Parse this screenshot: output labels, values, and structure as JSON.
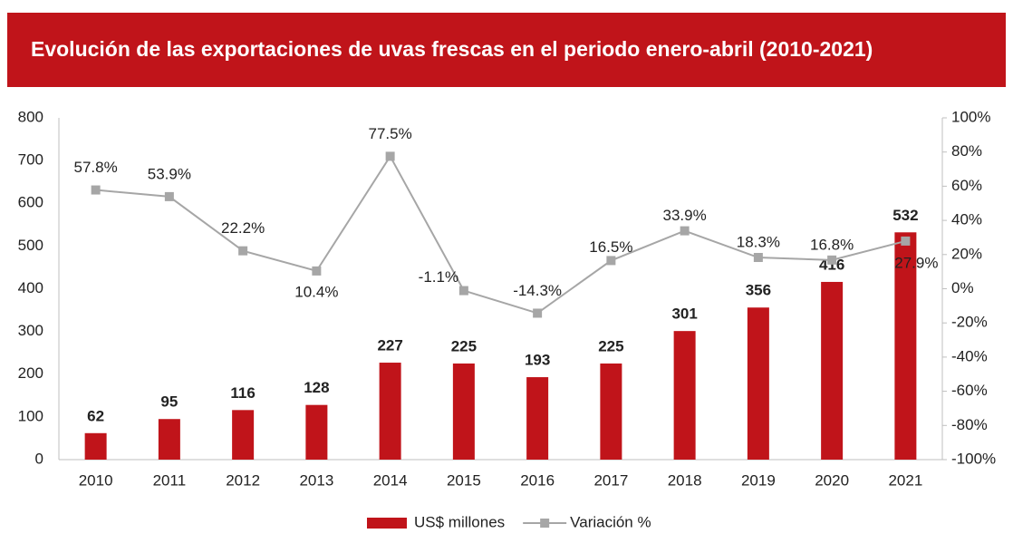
{
  "chart_data": {
    "type": "bar_line",
    "title": "Evolución de las exportaciones de uvas frescas en el periodo enero-abril (2010-2021)",
    "categories": [
      "2010",
      "2011",
      "2012",
      "2013",
      "2014",
      "2015",
      "2016",
      "2017",
      "2018",
      "2019",
      "2020",
      "2021"
    ],
    "series": [
      {
        "name": "US$ millones",
        "color": "#c0141a",
        "type": "bar",
        "values": [
          62,
          95,
          116,
          128,
          227,
          225,
          193,
          225,
          301,
          356,
          416,
          532
        ]
      },
      {
        "name": "Variación %",
        "color": "#a6a6a6",
        "type": "line",
        "axis": "y2",
        "values": [
          57.8,
          53.9,
          22.2,
          10.4,
          77.5,
          -1.1,
          -14.3,
          16.5,
          33.9,
          18.3,
          16.8,
          27.9
        ],
        "value_labels": [
          "57.8%",
          "53.9%",
          "22.2%",
          "10.4%",
          "77.5%",
          "-1.1%",
          "-14.3%",
          "16.5%",
          "33.9%",
          "18.3%",
          "16.8%",
          "27.9%"
        ]
      }
    ],
    "ylim": [
      0,
      800
    ],
    "yticks": [
      0,
      100,
      200,
      300,
      400,
      500,
      600,
      700,
      800
    ],
    "y2lim": [
      -100,
      100
    ],
    "y2ticks": [
      {
        "value": -100,
        "label": "-100%"
      },
      {
        "value": -80,
        "label": "-80%"
      },
      {
        "value": -60,
        "label": "-60%"
      },
      {
        "value": -40,
        "label": "-40%"
      },
      {
        "value": -20,
        "label": "-20%"
      },
      {
        "value": 0,
        "label": "0%"
      },
      {
        "value": 20,
        "label": "20%"
      },
      {
        "value": 40,
        "label": "40%"
      },
      {
        "value": 60,
        "label": "60%"
      },
      {
        "value": 80,
        "label": "80%"
      },
      {
        "value": 100,
        "label": "100%"
      }
    ],
    "legend": "bottom"
  }
}
